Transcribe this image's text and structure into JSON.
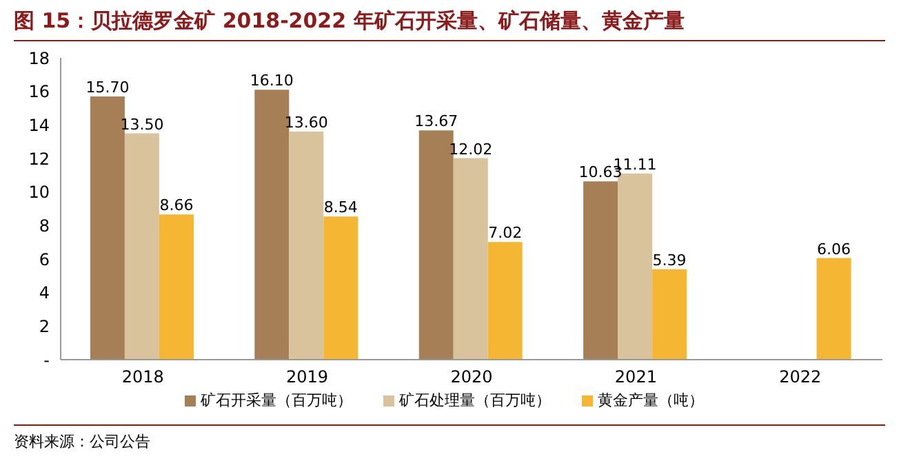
{
  "chart_data": {
    "type": "bar",
    "title": "图 15：贝拉德罗金矿 2018-2022 年矿石开采量、矿石储量、黄金产量",
    "categories": [
      "2018",
      "2019",
      "2020",
      "2021",
      "2022"
    ],
    "series": [
      {
        "name": "矿石开采量（百万吨）",
        "color": "#a67f56",
        "values": [
          15.7,
          16.1,
          13.67,
          10.63,
          null
        ],
        "value_labels": [
          "15.70",
          "16.10",
          "13.67",
          "10.63",
          null
        ]
      },
      {
        "name": "矿石处理量（百万吨）",
        "color": "#d8c39c",
        "values": [
          13.5,
          13.6,
          12.02,
          11.11,
          null
        ],
        "value_labels": [
          "13.50",
          "13.60",
          "12.02",
          "11.11",
          null
        ]
      },
      {
        "name": "黄金产量（吨）",
        "color": "#f4b633",
        "values": [
          8.66,
          8.54,
          7.02,
          5.39,
          6.06
        ],
        "value_labels": [
          "8.66",
          "8.54",
          "7.02",
          "5.39",
          "6.06"
        ]
      }
    ],
    "ylim": [
      0,
      18
    ],
    "yticks": [
      {
        "value": 0,
        "label": "-"
      },
      2,
      4,
      6,
      8,
      10,
      12,
      14,
      16,
      18
    ],
    "legend": "bottom",
    "annotations": [
      "资料来源：公司公告"
    ]
  }
}
